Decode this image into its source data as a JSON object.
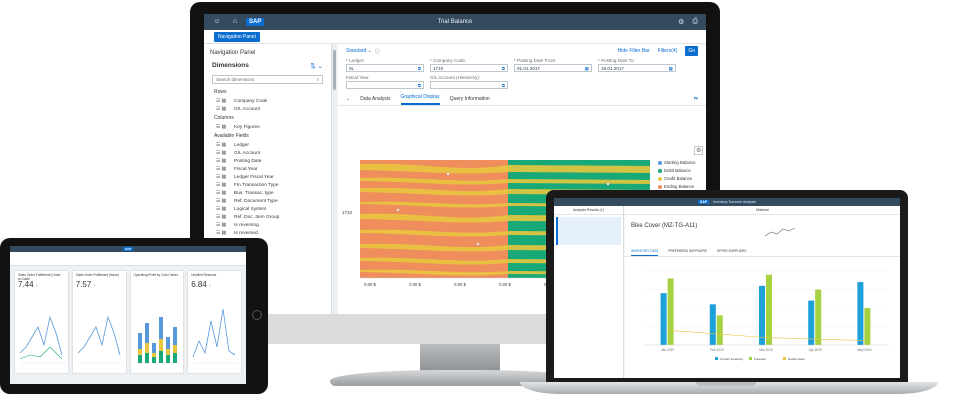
{
  "desktop": {
    "shell": {
      "title": "Trial Balance",
      "logo": "SAP"
    },
    "nav_button": "Navigation Panel",
    "nav_panel": {
      "title": "Navigation Panel",
      "dimensions_label": "Dimensions",
      "search_placeholder": "Search dimensions",
      "rows_label": "Rows",
      "rows": [
        "Company Code",
        "G/L Account"
      ],
      "columns_label": "Columns",
      "columns": [
        "Key Figures"
      ],
      "available_label": "Available Fields",
      "available": [
        "Ledger",
        "G/L Account",
        "Posting Date",
        "Fiscal Year",
        "Ledger Fiscal Year",
        "Fin.Transaction Type",
        "Bus. Transac. type",
        "Ref. Document Type",
        "Logical System",
        "Ref. Doc. Item Group",
        "Is reversing",
        "Is reversed"
      ]
    },
    "variant": "Standard",
    "hide_filter_bar": "Hide Filter Bar",
    "filters_btn": "Filters(4)",
    "go": "Go",
    "filters": [
      {
        "label": "* Ledger:",
        "value": "0L"
      },
      {
        "label": "* Company Code:",
        "value": "1710"
      },
      {
        "label": "* Posting Date From:",
        "value": "01.01.2017"
      },
      {
        "label": "* Posting Date To:",
        "value": "19.01.2017"
      },
      {
        "label": "Fiscal Year:",
        "value": ""
      },
      {
        "label": "G/L Account (Hierarchy):",
        "value": ""
      }
    ],
    "tabs": [
      "Data Analysis",
      "Graphical Display",
      "Query Information"
    ],
    "chart_data": {
      "type": "area",
      "categories": [
        "1710"
      ],
      "x_ticks": [
        "0.00 $",
        "0.00 $",
        "0.00 $",
        "0.00 $",
        "0.00 $",
        "0.00 $",
        "0.00 $"
      ],
      "series": [
        {
          "name": "Starting Balance",
          "color": "#5899da"
        },
        {
          "name": "Debit Balance",
          "color": "#19a979"
        },
        {
          "name": "Credit Balance",
          "color": "#e8c53e"
        },
        {
          "name": "Ending Balance",
          "color": "#ef8d5d"
        }
      ]
    }
  },
  "tablet": {
    "logo": "SAP",
    "cards": [
      {
        "title": "Sales Order Fulfillment (Order-to-Cash)",
        "kpi": "7.44",
        "unit": "↑"
      },
      {
        "title": "Sales Order Fulfillment (Issue)",
        "kpi": "7.57",
        "unit": "↑"
      },
      {
        "title": "Operating Profit by Cost Center",
        "kpi": "",
        "unit": ""
      },
      {
        "title": "Unbilled Revenue",
        "kpi": "6.84",
        "unit": "↑"
      }
    ]
  },
  "laptop": {
    "shell": {
      "title": "Inventory Turnover Analysis",
      "logo": "SAP"
    },
    "left_header": "Analysis Results (1)",
    "right_header": "Material",
    "object_title": "Bike Cover (MZ-TG-A11)",
    "tabs": [
      "INVENTORY DATA",
      "PREFERRED SUPPLIERS",
      "OFFER SUPPLIERS"
    ],
    "chart_data": {
      "type": "bar",
      "categories": [
        "Jan 2019",
        "Feb 2019",
        "Mar 2019",
        "Apr 2019",
        "May 2019"
      ],
      "series": [
        {
          "name": "Current Inventory",
          "color": "#1ea0d8",
          "values": [
            70,
            55,
            80,
            60,
            85
          ]
        },
        {
          "name": "Forecast",
          "color": "#a6d242",
          "values": [
            90,
            40,
            95,
            75,
            50
          ]
        }
      ],
      "line": {
        "name": "Goods Issue",
        "color": "#e8c53e",
        "values": [
          20,
          15,
          10,
          8,
          6
        ]
      }
    }
  }
}
